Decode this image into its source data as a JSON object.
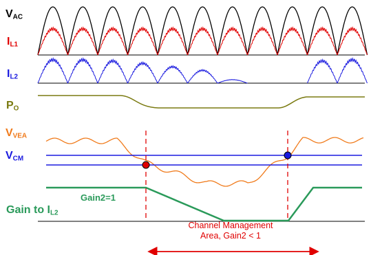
{
  "labels": {
    "vac": {
      "main": "V",
      "sub": "AC",
      "color": "#000000"
    },
    "il1": {
      "main": "I",
      "sub": "L1",
      "color": "#e00000"
    },
    "il2": {
      "main": "I",
      "sub": "L2",
      "color": "#1a1adf"
    },
    "po": {
      "main": "P",
      "sub": "O",
      "color": "#7a7a10"
    },
    "vvea": {
      "main": "V",
      "sub": "VEA",
      "color": "#f07a1a"
    },
    "vcm": {
      "main": "V",
      "sub": "CM",
      "color": "#1a1adf"
    },
    "gain_to": {
      "main": "Gain to I",
      "sub": "L2",
      "color": "#2a9a5a"
    }
  },
  "gain_note": {
    "text": "Gain2=1",
    "color": "#2a9a5a"
  },
  "area": {
    "line1": "Channel Management",
    "line2": "Area, Gain2 < 1",
    "color": "#e00000"
  },
  "colors": {
    "vac": "#000000",
    "il1": "#e00000",
    "il2": "#1a1adf",
    "po": "#7a7a10",
    "vvea": "#f07a1a",
    "vcm": "#1a1adf",
    "gain": "#2a9a5a",
    "marker_left": "#e00000",
    "marker_right": "#1a1adf",
    "dashed": "#e00000",
    "axis": "#000000"
  }
}
